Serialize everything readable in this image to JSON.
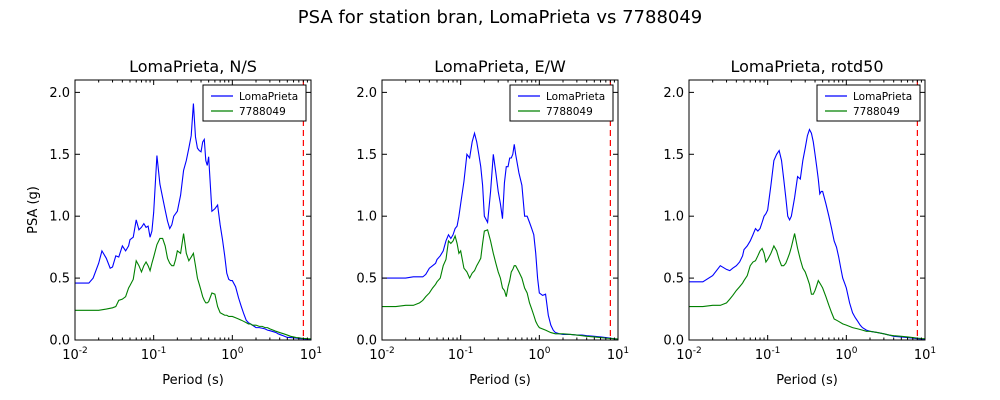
{
  "figure": {
    "title": "PSA for station bran, LomaPrieta vs 7788049"
  },
  "colors": {
    "series1": "#0000ff",
    "series2": "#008000",
    "marker_line": "#ff0000"
  },
  "chart_data": [
    {
      "type": "line",
      "title": "LomaPrieta, N/S",
      "xlabel": "Period (s)",
      "ylabel": "PSA (g)",
      "xscale": "log",
      "xlim": [
        0.01,
        10
      ],
      "ylim": [
        0,
        2.1
      ],
      "xticks": [
        "10",
        "10",
        "10",
        "10"
      ],
      "xtick_exponents": [
        "-2",
        "-1",
        "0",
        "1"
      ],
      "yticks": [
        "0.0",
        "0.5",
        "1.0",
        "1.5",
        "2.0"
      ],
      "legend": "top-right",
      "vline_x": 8,
      "series": [
        {
          "name": "LomaPrieta",
          "x": [
            0.01,
            0.015,
            0.017,
            0.02,
            0.022,
            0.025,
            0.028,
            0.03,
            0.033,
            0.036,
            0.04,
            0.044,
            0.048,
            0.05,
            0.055,
            0.06,
            0.065,
            0.07,
            0.075,
            0.08,
            0.085,
            0.09,
            0.095,
            0.1,
            0.11,
            0.12,
            0.13,
            0.14,
            0.15,
            0.16,
            0.17,
            0.18,
            0.19,
            0.2,
            0.22,
            0.24,
            0.26,
            0.28,
            0.3,
            0.32,
            0.34,
            0.36,
            0.38,
            0.4,
            0.42,
            0.44,
            0.46,
            0.48,
            0.5,
            0.55,
            0.6,
            0.65,
            0.7,
            0.75,
            0.8,
            0.85,
            0.9,
            0.95,
            1.0,
            1.1,
            1.2,
            1.3,
            1.4,
            1.5,
            1.6,
            1.7,
            1.8,
            1.9,
            2.0,
            2.2,
            2.4,
            2.6,
            2.8,
            3.0,
            3.2,
            3.4,
            3.6,
            3.8,
            4.0,
            4.2,
            4.4,
            4.6,
            4.8,
            5.0,
            5.5,
            6.0,
            6.5,
            7.0,
            7.5,
            8.0,
            8.5,
            9.0,
            9.5,
            10.0
          ],
          "y": [
            0.46,
            0.46,
            0.5,
            0.62,
            0.72,
            0.66,
            0.58,
            0.59,
            0.68,
            0.67,
            0.76,
            0.72,
            0.76,
            0.81,
            0.83,
            0.97,
            0.89,
            0.91,
            0.94,
            0.91,
            0.92,
            0.83,
            0.88,
            1.03,
            1.49,
            1.26,
            1.15,
            1.05,
            0.96,
            0.9,
            0.93,
            1.0,
            1.02,
            1.04,
            1.17,
            1.37,
            1.45,
            1.55,
            1.65,
            1.91,
            1.64,
            1.55,
            1.53,
            1.52,
            1.6,
            1.62,
            1.45,
            1.41,
            1.48,
            1.04,
            1.06,
            1.09,
            0.93,
            0.81,
            0.68,
            0.54,
            0.49,
            0.48,
            0.48,
            0.43,
            0.34,
            0.27,
            0.21,
            0.16,
            0.14,
            0.13,
            0.12,
            0.11,
            0.1,
            0.1,
            0.095,
            0.09,
            0.08,
            0.075,
            0.07,
            0.065,
            0.06,
            0.05,
            0.045,
            0.04,
            0.035,
            0.03,
            0.025,
            0.022,
            0.02,
            0.018,
            0.015,
            0.012,
            0.01,
            0.01,
            0.009,
            0.008,
            0.007,
            0.006
          ]
        },
        {
          "name": "7788049",
          "x": [
            0.01,
            0.015,
            0.02,
            0.025,
            0.03,
            0.033,
            0.036,
            0.04,
            0.044,
            0.048,
            0.05,
            0.055,
            0.06,
            0.065,
            0.07,
            0.075,
            0.08,
            0.085,
            0.09,
            0.095,
            0.1,
            0.11,
            0.12,
            0.13,
            0.14,
            0.15,
            0.16,
            0.17,
            0.18,
            0.19,
            0.2,
            0.22,
            0.24,
            0.26,
            0.28,
            0.3,
            0.32,
            0.34,
            0.36,
            0.38,
            0.4,
            0.42,
            0.44,
            0.46,
            0.48,
            0.5,
            0.55,
            0.6,
            0.65,
            0.7,
            0.75,
            0.8,
            0.85,
            0.9,
            0.95,
            1.0,
            1.1,
            1.2,
            1.3,
            1.4,
            1.5,
            1.6,
            1.7,
            1.8,
            2.0,
            2.2,
            2.4,
            2.6,
            2.8,
            3.0,
            3.3,
            3.6,
            4.0,
            4.5,
            5.0,
            5.5,
            6.0,
            6.5,
            7.0,
            7.5,
            8.0,
            8.5,
            9.0,
            10.0
          ],
          "y": [
            0.24,
            0.24,
            0.24,
            0.25,
            0.26,
            0.27,
            0.32,
            0.33,
            0.35,
            0.42,
            0.44,
            0.49,
            0.64,
            0.6,
            0.55,
            0.6,
            0.63,
            0.6,
            0.56,
            0.62,
            0.67,
            0.77,
            0.82,
            0.82,
            0.76,
            0.66,
            0.62,
            0.6,
            0.6,
            0.65,
            0.72,
            0.7,
            0.86,
            0.7,
            0.64,
            0.67,
            0.7,
            0.6,
            0.5,
            0.45,
            0.4,
            0.35,
            0.32,
            0.3,
            0.3,
            0.31,
            0.38,
            0.37,
            0.27,
            0.22,
            0.21,
            0.2,
            0.2,
            0.19,
            0.19,
            0.19,
            0.18,
            0.17,
            0.16,
            0.15,
            0.14,
            0.13,
            0.13,
            0.12,
            0.12,
            0.11,
            0.11,
            0.1,
            0.1,
            0.09,
            0.08,
            0.07,
            0.06,
            0.05,
            0.04,
            0.03,
            0.025,
            0.02,
            0.018,
            0.015,
            0.013,
            0.012,
            0.011,
            0.01
          ]
        }
      ]
    },
    {
      "type": "line",
      "title": "LomaPrieta, E/W",
      "xlabel": "Period (s)",
      "ylabel": "",
      "xscale": "log",
      "xlim": [
        0.01,
        10
      ],
      "ylim": [
        0,
        2.1
      ],
      "xticks": [
        "10",
        "10",
        "10",
        "10"
      ],
      "xtick_exponents": [
        "-2",
        "-1",
        "0",
        "1"
      ],
      "yticks": [
        "0.0",
        "0.5",
        "1.0",
        "1.5",
        "2.0"
      ],
      "legend": "top-right",
      "vline_x": 8,
      "series": [
        {
          "name": "LomaPrieta",
          "x": [
            0.01,
            0.015,
            0.02,
            0.025,
            0.03,
            0.033,
            0.036,
            0.04,
            0.044,
            0.048,
            0.05,
            0.055,
            0.06,
            0.065,
            0.07,
            0.075,
            0.08,
            0.085,
            0.09,
            0.095,
            0.1,
            0.11,
            0.12,
            0.13,
            0.14,
            0.15,
            0.16,
            0.17,
            0.18,
            0.19,
            0.2,
            0.22,
            0.24,
            0.26,
            0.28,
            0.3,
            0.32,
            0.34,
            0.36,
            0.38,
            0.4,
            0.42,
            0.44,
            0.46,
            0.48,
            0.5,
            0.55,
            0.6,
            0.65,
            0.7,
            0.75,
            0.8,
            0.85,
            0.9,
            0.95,
            1.0,
            1.1,
            1.2,
            1.3,
            1.4,
            1.5,
            1.6,
            1.8,
            2.0,
            2.5,
            3.0,
            3.5,
            4.0,
            5.0,
            6.0,
            7.0,
            8.0,
            9.0,
            10.0
          ],
          "y": [
            0.5,
            0.5,
            0.5,
            0.51,
            0.51,
            0.51,
            0.53,
            0.58,
            0.6,
            0.62,
            0.65,
            0.68,
            0.72,
            0.8,
            0.85,
            0.82,
            0.85,
            0.9,
            0.92,
            1.0,
            1.1,
            1.28,
            1.5,
            1.47,
            1.6,
            1.67,
            1.6,
            1.5,
            1.4,
            1.25,
            1.0,
            0.95,
            1.2,
            1.5,
            1.35,
            1.2,
            1.1,
            0.98,
            1.27,
            1.4,
            1.4,
            1.47,
            1.47,
            1.5,
            1.58,
            1.5,
            1.35,
            1.25,
            1.0,
            1.0,
            0.95,
            0.9,
            0.85,
            0.7,
            0.5,
            0.38,
            0.36,
            0.37,
            0.2,
            0.12,
            0.08,
            0.06,
            0.05,
            0.045,
            0.045,
            0.04,
            0.04,
            0.035,
            0.03,
            0.025,
            0.02,
            0.015,
            0.01,
            0.008
          ]
        },
        {
          "name": "7788049",
          "x": [
            0.01,
            0.015,
            0.02,
            0.025,
            0.03,
            0.033,
            0.036,
            0.04,
            0.044,
            0.048,
            0.05,
            0.055,
            0.06,
            0.065,
            0.07,
            0.075,
            0.08,
            0.085,
            0.09,
            0.095,
            0.1,
            0.11,
            0.12,
            0.13,
            0.14,
            0.15,
            0.16,
            0.17,
            0.18,
            0.19,
            0.2,
            0.22,
            0.24,
            0.26,
            0.28,
            0.3,
            0.32,
            0.34,
            0.36,
            0.38,
            0.4,
            0.42,
            0.44,
            0.46,
            0.48,
            0.5,
            0.55,
            0.6,
            0.65,
            0.7,
            0.75,
            0.8,
            0.85,
            0.9,
            0.95,
            1.0,
            1.2,
            1.4,
            1.6,
            1.8,
            2.0,
            2.5,
            3.0,
            3.5,
            4.0,
            5.0,
            6.0,
            7.0,
            8.0,
            9.0,
            10.0
          ],
          "y": [
            0.27,
            0.27,
            0.28,
            0.28,
            0.3,
            0.32,
            0.35,
            0.38,
            0.42,
            0.45,
            0.47,
            0.5,
            0.6,
            0.65,
            0.8,
            0.78,
            0.8,
            0.84,
            0.78,
            0.7,
            0.72,
            0.58,
            0.55,
            0.5,
            0.54,
            0.56,
            0.6,
            0.63,
            0.66,
            0.78,
            0.88,
            0.89,
            0.8,
            0.7,
            0.62,
            0.55,
            0.5,
            0.42,
            0.4,
            0.35,
            0.43,
            0.48,
            0.55,
            0.57,
            0.6,
            0.6,
            0.55,
            0.5,
            0.42,
            0.38,
            0.3,
            0.25,
            0.2,
            0.15,
            0.12,
            0.1,
            0.08,
            0.06,
            0.05,
            0.05,
            0.05,
            0.045,
            0.04,
            0.035,
            0.03,
            0.025,
            0.02,
            0.015,
            0.012,
            0.01,
            0.008
          ]
        }
      ]
    },
    {
      "type": "line",
      "title": "LomaPrieta, rotd50",
      "xlabel": "Period (s)",
      "ylabel": "",
      "xscale": "log",
      "xlim": [
        0.01,
        10
      ],
      "ylim": [
        0,
        2.1
      ],
      "xticks": [
        "10",
        "10",
        "10",
        "10"
      ],
      "xtick_exponents": [
        "-2",
        "-1",
        "0",
        "1"
      ],
      "yticks": [
        "0.0",
        "0.5",
        "1.0",
        "1.5",
        "2.0"
      ],
      "legend": "top-right",
      "vline_x": 8,
      "series": [
        {
          "name": "LomaPrieta",
          "x": [
            0.01,
            0.015,
            0.02,
            0.025,
            0.03,
            0.033,
            0.036,
            0.04,
            0.044,
            0.048,
            0.05,
            0.055,
            0.06,
            0.065,
            0.07,
            0.075,
            0.08,
            0.085,
            0.09,
            0.095,
            0.1,
            0.11,
            0.12,
            0.13,
            0.14,
            0.15,
            0.16,
            0.17,
            0.18,
            0.19,
            0.2,
            0.22,
            0.24,
            0.26,
            0.28,
            0.3,
            0.32,
            0.34,
            0.36,
            0.38,
            0.4,
            0.42,
            0.44,
            0.46,
            0.48,
            0.5,
            0.55,
            0.6,
            0.65,
            0.7,
            0.75,
            0.8,
            0.85,
            0.9,
            0.95,
            1.0,
            1.1,
            1.2,
            1.3,
            1.4,
            1.5,
            1.6,
            1.8,
            2.0,
            2.5,
            3.0,
            3.5,
            4.0,
            5.0,
            6.0,
            7.0,
            8.0,
            9.0,
            10.0
          ],
          "y": [
            0.47,
            0.47,
            0.52,
            0.6,
            0.57,
            0.56,
            0.58,
            0.6,
            0.63,
            0.68,
            0.73,
            0.76,
            0.8,
            0.85,
            0.9,
            0.88,
            0.9,
            0.95,
            1.0,
            1.02,
            1.05,
            1.25,
            1.45,
            1.5,
            1.53,
            1.45,
            1.3,
            1.15,
            1.0,
            0.97,
            1.0,
            1.15,
            1.32,
            1.3,
            1.45,
            1.55,
            1.65,
            1.7,
            1.67,
            1.6,
            1.5,
            1.4,
            1.3,
            1.18,
            1.2,
            1.2,
            1.1,
            1.0,
            0.9,
            0.8,
            0.75,
            0.67,
            0.58,
            0.5,
            0.46,
            0.42,
            0.3,
            0.22,
            0.18,
            0.15,
            0.12,
            0.1,
            0.08,
            0.07,
            0.06,
            0.05,
            0.04,
            0.03,
            0.025,
            0.02,
            0.015,
            0.01,
            0.008,
            0.006
          ]
        },
        {
          "name": "7788049",
          "x": [
            0.01,
            0.015,
            0.02,
            0.025,
            0.03,
            0.033,
            0.036,
            0.04,
            0.044,
            0.048,
            0.05,
            0.055,
            0.06,
            0.065,
            0.07,
            0.075,
            0.08,
            0.085,
            0.09,
            0.095,
            0.1,
            0.11,
            0.12,
            0.13,
            0.14,
            0.15,
            0.16,
            0.17,
            0.18,
            0.19,
            0.2,
            0.22,
            0.24,
            0.26,
            0.28,
            0.3,
            0.32,
            0.34,
            0.36,
            0.38,
            0.4,
            0.42,
            0.44,
            0.46,
            0.48,
            0.5,
            0.55,
            0.6,
            0.65,
            0.7,
            0.75,
            0.8,
            0.9,
            1.0,
            1.2,
            1.4,
            1.6,
            1.8,
            2.0,
            2.5,
            3.0,
            3.5,
            4.0,
            5.0,
            6.0,
            7.0,
            8.0,
            9.0,
            10.0
          ],
          "y": [
            0.27,
            0.27,
            0.28,
            0.28,
            0.3,
            0.33,
            0.36,
            0.4,
            0.43,
            0.46,
            0.48,
            0.52,
            0.6,
            0.63,
            0.64,
            0.68,
            0.72,
            0.74,
            0.7,
            0.63,
            0.65,
            0.7,
            0.76,
            0.72,
            0.65,
            0.6,
            0.6,
            0.62,
            0.66,
            0.7,
            0.75,
            0.86,
            0.74,
            0.65,
            0.58,
            0.55,
            0.5,
            0.45,
            0.37,
            0.37,
            0.4,
            0.44,
            0.48,
            0.46,
            0.44,
            0.42,
            0.35,
            0.28,
            0.22,
            0.17,
            0.16,
            0.15,
            0.13,
            0.12,
            0.1,
            0.09,
            0.08,
            0.07,
            0.07,
            0.06,
            0.05,
            0.04,
            0.035,
            0.03,
            0.025,
            0.02,
            0.015,
            0.012,
            0.01
          ]
        }
      ]
    }
  ]
}
